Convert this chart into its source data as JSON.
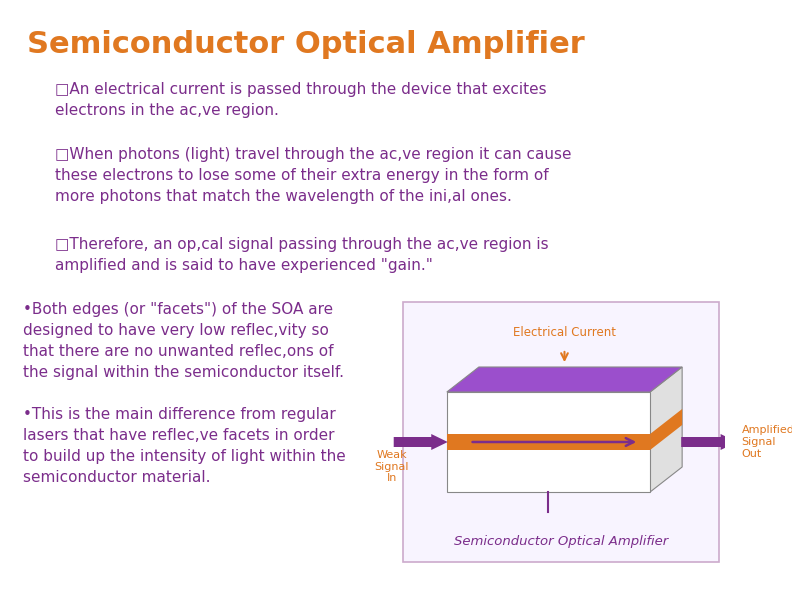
{
  "title": "Semiconductor Optical Amplifier",
  "title_color": "#E07820",
  "title_fontsize": 22,
  "bg_color": "#FFFFFF",
  "bullet_color": "#7B2D8B",
  "bullet_fontsize": 11,
  "orange_color": "#E07820",
  "purple_color": "#7B2D8B",
  "bullets_top": [
    "□An electrical current is passed through the device that excites\nelectrons in the ac,ve region.",
    "□When photons (light) travel through the ac,ve region it can cause\nthese electrons to lose some of their extra energy in the form of\nmore photons that match the wavelength of the ini,al ones.",
    "□Therefore, an op,cal signal passing through the ac,ve region is\namplified and is said to have experienced \"gain.\""
  ],
  "bullets_bottom": [
    "•Both edges (or \"facets\") of the SOA are\ndesigned to have very low reflec,vity so\nthat there are no unwanted reflec,ons of\nthe signal within the semiconductor itself.",
    "•This is the main difference from regular\nlasers that have reflec,ve facets in order\nto build up the intensity of light within the\nsemiconductor material."
  ],
  "diagram_caption": "Semiconductor Optical Amplifier",
  "diagram_label_ec": "Electrical Current",
  "diagram_label_ws": "Weak\nSignal\nIn",
  "diagram_label_as": "Amplified\nSignal\nOut"
}
